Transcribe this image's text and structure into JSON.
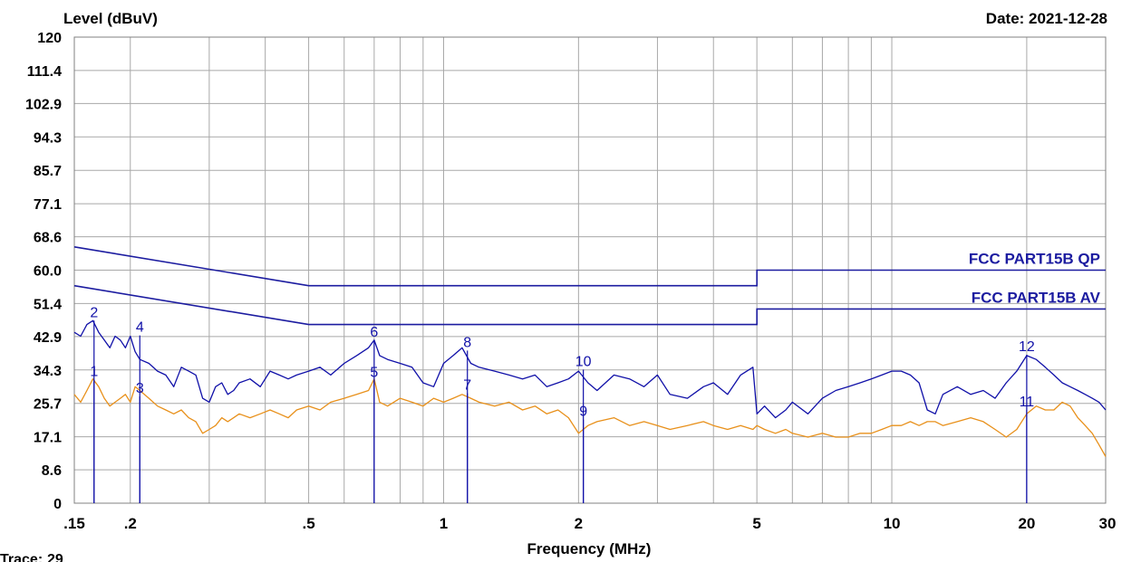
{
  "chart_data": {
    "type": "line",
    "title": "",
    "ylabel": "Level (dBuV)",
    "xlabel": "Frequency (MHz)",
    "date_label": "Date: 2021-12-28",
    "x_scale": "log",
    "xlim": [
      0.15,
      30
    ],
    "ylim": [
      0,
      120
    ],
    "grid": true,
    "y_ticks": [
      {
        "v": 0,
        "label": "0"
      },
      {
        "v": 8.6,
        "label": "8.6"
      },
      {
        "v": 17.1,
        "label": "17.1"
      },
      {
        "v": 25.7,
        "label": "25.7"
      },
      {
        "v": 34.3,
        "label": "34.3"
      },
      {
        "v": 42.9,
        "label": "42.9"
      },
      {
        "v": 51.4,
        "label": "51.4"
      },
      {
        "v": 60.0,
        "label": "60.0"
      },
      {
        "v": 68.6,
        "label": "68.6"
      },
      {
        "v": 77.1,
        "label": "77.1"
      },
      {
        "v": 85.7,
        "label": "85.7"
      },
      {
        "v": 94.3,
        "label": "94.3"
      },
      {
        "v": 102.9,
        "label": "102.9"
      },
      {
        "v": 111.4,
        "label": "111.4"
      },
      {
        "v": 120,
        "label": "120"
      }
    ],
    "x_ticks": [
      {
        "v": 0.15,
        "label": ".15"
      },
      {
        "v": 0.2,
        "label": ".2"
      },
      {
        "v": 0.5,
        "label": ".5"
      },
      {
        "v": 1,
        "label": "1"
      },
      {
        "v": 2,
        "label": "2"
      },
      {
        "v": 5,
        "label": "5"
      },
      {
        "v": 10,
        "label": "10"
      },
      {
        "v": 20,
        "label": "20"
      },
      {
        "v": 30,
        "label": "30"
      }
    ],
    "x_minor_grid": [
      0.3,
      0.4,
      0.6,
      0.7,
      0.8,
      0.9,
      3,
      4,
      6,
      7,
      8,
      9
    ],
    "limits": [
      {
        "name": "FCC PART15B QP",
        "color": "#1c1ca0",
        "points": [
          [
            0.15,
            66
          ],
          [
            0.5,
            56
          ],
          [
            5,
            56
          ],
          [
            5,
            60
          ],
          [
            30,
            60
          ]
        ]
      },
      {
        "name": "FCC PART15B AV",
        "color": "#1c1ca0",
        "points": [
          [
            0.15,
            56
          ],
          [
            0.5,
            46
          ],
          [
            5,
            46
          ],
          [
            5,
            50
          ],
          [
            30,
            50
          ]
        ]
      }
    ],
    "series": [
      {
        "color": "#1010a8",
        "x": [
          0.15,
          0.155,
          0.16,
          0.165,
          0.17,
          0.175,
          0.18,
          0.185,
          0.19,
          0.195,
          0.2,
          0.205,
          0.21,
          0.22,
          0.23,
          0.24,
          0.25,
          0.26,
          0.27,
          0.28,
          0.29,
          0.3,
          0.31,
          0.32,
          0.33,
          0.34,
          0.35,
          0.37,
          0.39,
          0.41,
          0.43,
          0.45,
          0.47,
          0.5,
          0.53,
          0.56,
          0.6,
          0.64,
          0.68,
          0.7,
          0.72,
          0.75,
          0.8,
          0.85,
          0.9,
          0.95,
          1.0,
          1.05,
          1.1,
          1.15,
          1.2,
          1.3,
          1.4,
          1.5,
          1.6,
          1.7,
          1.8,
          1.9,
          2.0,
          2.1,
          2.2,
          2.4,
          2.6,
          2.8,
          3.0,
          3.2,
          3.5,
          3.8,
          4.0,
          4.3,
          4.6,
          4.9,
          5.0,
          5.2,
          5.5,
          5.8,
          6.0,
          6.5,
          7.0,
          7.5,
          8.0,
          8.5,
          9.0,
          9.5,
          10,
          10.5,
          11,
          11.5,
          12,
          12.5,
          13,
          14,
          15,
          16,
          17,
          18,
          19,
          20,
          21,
          22,
          23,
          24,
          25,
          26,
          27,
          28,
          29,
          30
        ],
        "y": [
          44,
          43,
          46,
          47,
          44,
          42,
          40,
          43,
          42,
          40,
          43,
          39,
          37,
          36,
          34,
          33,
          30,
          35,
          34,
          33,
          27,
          26,
          30,
          31,
          28,
          29,
          31,
          32,
          30,
          34,
          33,
          32,
          33,
          34,
          35,
          33,
          36,
          38,
          40,
          42,
          38,
          37,
          36,
          35,
          31,
          30,
          36,
          38,
          40,
          36,
          35,
          34,
          33,
          32,
          33,
          30,
          31,
          32,
          34,
          31,
          29,
          33,
          32,
          30,
          33,
          28,
          27,
          30,
          31,
          28,
          33,
          35,
          23,
          25,
          22,
          24,
          26,
          23,
          27,
          29,
          30,
          31,
          32,
          33,
          34,
          34,
          33,
          31,
          24,
          23,
          28,
          30,
          28,
          29,
          27,
          31,
          34,
          38,
          37,
          35,
          33,
          31,
          30,
          29,
          28,
          27,
          26,
          24
        ],
        "markers": [
          {
            "n": "2",
            "x": 0.166,
            "y": 47.0
          },
          {
            "n": "4",
            "x": 0.21,
            "y": 43.2
          },
          {
            "n": "6",
            "x": 0.7,
            "y": 42.0
          },
          {
            "n": "8",
            "x": 1.13,
            "y": 39.3
          },
          {
            "n": "10",
            "x": 2.05,
            "y": 34.4
          },
          {
            "n": "12",
            "x": 20.0,
            "y": 38.2
          }
        ]
      },
      {
        "color": "#e8901a",
        "x": [
          0.15,
          0.155,
          0.16,
          0.165,
          0.17,
          0.175,
          0.18,
          0.185,
          0.19,
          0.195,
          0.2,
          0.205,
          0.21,
          0.22,
          0.23,
          0.24,
          0.25,
          0.26,
          0.27,
          0.28,
          0.29,
          0.3,
          0.31,
          0.32,
          0.33,
          0.34,
          0.35,
          0.37,
          0.39,
          0.41,
          0.43,
          0.45,
          0.47,
          0.5,
          0.53,
          0.56,
          0.6,
          0.64,
          0.68,
          0.7,
          0.72,
          0.75,
          0.8,
          0.85,
          0.9,
          0.95,
          1.0,
          1.05,
          1.1,
          1.15,
          1.2,
          1.3,
          1.4,
          1.5,
          1.6,
          1.7,
          1.8,
          1.9,
          2.0,
          2.1,
          2.2,
          2.4,
          2.6,
          2.8,
          3.0,
          3.2,
          3.5,
          3.8,
          4.0,
          4.3,
          4.6,
          4.9,
          5.0,
          5.2,
          5.5,
          5.8,
          6.0,
          6.5,
          7.0,
          7.5,
          8.0,
          8.5,
          9.0,
          9.5,
          10,
          10.5,
          11,
          11.5,
          12,
          12.5,
          13,
          14,
          15,
          16,
          17,
          18,
          19,
          20,
          21,
          22,
          23,
          24,
          25,
          26,
          27,
          28,
          29,
          30
        ],
        "y": [
          28,
          26,
          29,
          32,
          30,
          27,
          25,
          26,
          27,
          28,
          26,
          30,
          29,
          27,
          25,
          24,
          23,
          24,
          22,
          21,
          18,
          19,
          20,
          22,
          21,
          22,
          23,
          22,
          23,
          24,
          23,
          22,
          24,
          25,
          24,
          26,
          27,
          28,
          29,
          32,
          26,
          25,
          27,
          26,
          25,
          27,
          26,
          27,
          28,
          27,
          26,
          25,
          26,
          24,
          25,
          23,
          24,
          22,
          18,
          20,
          21,
          22,
          20,
          21,
          20,
          19,
          20,
          21,
          20,
          19,
          20,
          19,
          20,
          19,
          18,
          19,
          18,
          17,
          18,
          17,
          17,
          18,
          18,
          19,
          20,
          20,
          21,
          20,
          21,
          21,
          20,
          21,
          22,
          21,
          19,
          17,
          19,
          23,
          25,
          24,
          24,
          26,
          25,
          22,
          20,
          18,
          15,
          12
        ],
        "markers": [
          {
            "n": "1",
            "x": 0.166,
            "y": 31.8
          },
          {
            "n": "3",
            "x": 0.21,
            "y": 27.5
          },
          {
            "n": "5",
            "x": 0.7,
            "y": 31.6
          },
          {
            "n": "7",
            "x": 1.13,
            "y": 28.3
          },
          {
            "n": "9",
            "x": 2.05,
            "y": 21.5
          },
          {
            "n": "11",
            "x": 20.0,
            "y": 24.0
          }
        ]
      }
    ]
  },
  "footer": {
    "trace_key": "Trace:",
    "trace_value": "29"
  },
  "colors": {
    "grid": "#a8a8a8",
    "trace_value": "#e8901a",
    "marker": "#1010a8"
  }
}
